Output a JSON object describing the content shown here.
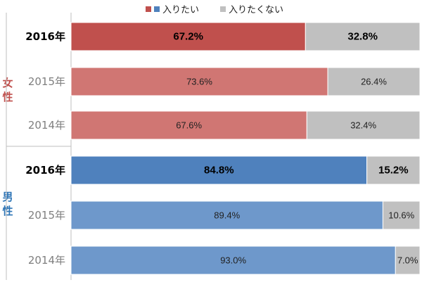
{
  "chart_data": {
    "type": "bar",
    "stacked": true,
    "orientation": "horizontal",
    "percent_axis": [
      0,
      100
    ],
    "legend_placement": "top",
    "series": [
      {
        "name": "入りたい",
        "color": "#c0504d"
      },
      {
        "name": "入りたくない",
        "color": "#c0c0c0"
      }
    ],
    "groups": [
      {
        "label": "女性",
        "color": "#c0504d",
        "rows": [
          {
            "year": "2016年",
            "want": 67.2,
            "want_label": "67.2%",
            "not_want": 32.8,
            "not_want_label": "32.8%",
            "highlight": true,
            "bar_color": "#c0504d"
          },
          {
            "year": "2015年",
            "want": 73.6,
            "want_label": "73.6%",
            "not_want": 26.4,
            "not_want_label": "26.4%",
            "highlight": false,
            "bar_color": "#d07673"
          },
          {
            "year": "2014年",
            "want": 67.6,
            "want_label": "67.6%",
            "not_want": 32.4,
            "not_want_label": "32.4%",
            "highlight": false,
            "bar_color": "#d07673"
          }
        ]
      },
      {
        "label": "男性",
        "color": "#2e75b6",
        "rows": [
          {
            "year": "2016年",
            "want": 84.8,
            "want_label": "84.8%",
            "not_want": 15.2,
            "not_want_label": "15.2%",
            "highlight": true,
            "bar_color": "#4f81bd"
          },
          {
            "year": "2015年",
            "want": 89.4,
            "want_label": "89.4%",
            "not_want": 10.6,
            "not_want_label": "10.6%",
            "highlight": false,
            "bar_color": "#6e98cb"
          },
          {
            "year": "2014年",
            "want": 93.0,
            "want_label": "93.0%",
            "not_want": 7.0,
            "not_want_label": "7.0%",
            "highlight": false,
            "bar_color": "#6e98cb"
          }
        ]
      }
    ]
  }
}
